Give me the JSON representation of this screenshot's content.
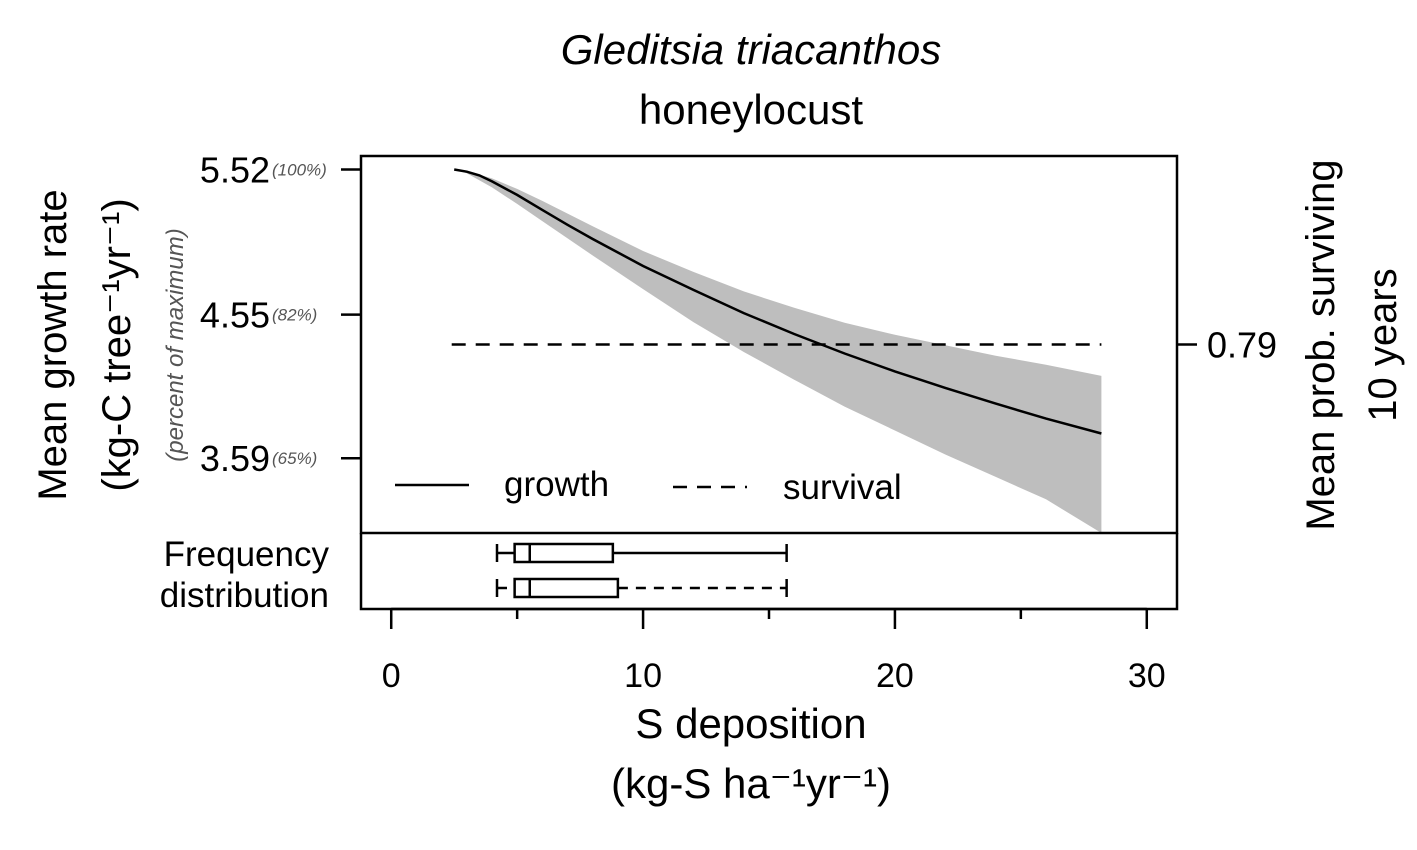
{
  "chart_data": {
    "type": "line",
    "title": "Gleditsia triacanthos",
    "subtitle": "honeylocust",
    "xlabel": "S deposition",
    "xlabel_units": "(kg-S ha⁻¹yr⁻¹)",
    "ylabel": "Mean growth rate",
    "ylabel_units": "(kg-C tree⁻¹yr⁻¹)",
    "ylabel_secondary": "(percent of maximum)",
    "y2label_line1": "Mean prob. surviving",
    "y2label_line2": "10 years",
    "xlim": [
      -1.2,
      31.2
    ],
    "ylim": [
      3.09,
      5.61
    ],
    "x_ticks": [
      0,
      10,
      20,
      30
    ],
    "x_tick_labels": [
      "0",
      "10",
      "20",
      "30"
    ],
    "x_minor_ticks": [
      5,
      15,
      25
    ],
    "y_ticks": [
      {
        "value": 5.52,
        "label": "5.52",
        "pct": "(100%)"
      },
      {
        "value": 4.55,
        "label": "4.55",
        "pct": "(82%)"
      },
      {
        "value": 3.59,
        "label": "3.59",
        "pct": "(65%)"
      }
    ],
    "y2_ticks": [
      {
        "value": 4.35,
        "label": "0.79"
      }
    ],
    "series": [
      {
        "name": "growth",
        "style": "solid",
        "x": [
          2.5,
          3.0,
          3.5,
          4.0,
          5.0,
          6.0,
          7.0,
          8.0,
          9.0,
          10.0,
          12.0,
          14.0,
          16.0,
          18.0,
          20.0,
          22.0,
          24.0,
          26.0,
          28.2
        ],
        "y": [
          5.52,
          5.505,
          5.48,
          5.44,
          5.35,
          5.25,
          5.15,
          5.055,
          4.965,
          4.875,
          4.715,
          4.56,
          4.42,
          4.29,
          4.17,
          4.06,
          3.955,
          3.855,
          3.755
        ]
      },
      {
        "name": "survival",
        "style": "dashed",
        "x": [
          2.4,
          28.2
        ],
        "y": [
          4.35,
          4.35
        ]
      }
    ],
    "band": {
      "x": [
        2.5,
        3.0,
        4.0,
        5.0,
        6.0,
        8.0,
        10.0,
        12.0,
        14.0,
        16.0,
        18.0,
        20.0,
        22.0,
        24.0,
        26.0,
        28.2
      ],
      "upper": [
        5.52,
        5.51,
        5.46,
        5.39,
        5.31,
        5.14,
        4.975,
        4.835,
        4.705,
        4.595,
        4.495,
        4.415,
        4.345,
        4.275,
        4.215,
        4.14
      ],
      "lower": [
        5.52,
        5.495,
        5.4,
        5.29,
        5.175,
        4.945,
        4.72,
        4.5,
        4.3,
        4.115,
        3.935,
        3.775,
        3.615,
        3.465,
        3.315,
        3.09
      ]
    },
    "band_color": "#bebebe",
    "legend": {
      "position": "bottom-left",
      "entries": [
        {
          "label": "growth",
          "style": "solid"
        },
        {
          "label": "survival",
          "style": "dashed"
        }
      ]
    },
    "frequency_distribution": {
      "label_line1": "Frequency",
      "label_line2": "distribution",
      "boxes": [
        {
          "style": "solid",
          "min": 4.2,
          "q1": 4.9,
          "median": 5.5,
          "q3": 8.8,
          "max": 15.7
        },
        {
          "style": "dashed",
          "min": 4.2,
          "q1": 4.9,
          "median": 5.5,
          "q3": 9.0,
          "max": 15.7
        }
      ]
    },
    "grid": false
  }
}
